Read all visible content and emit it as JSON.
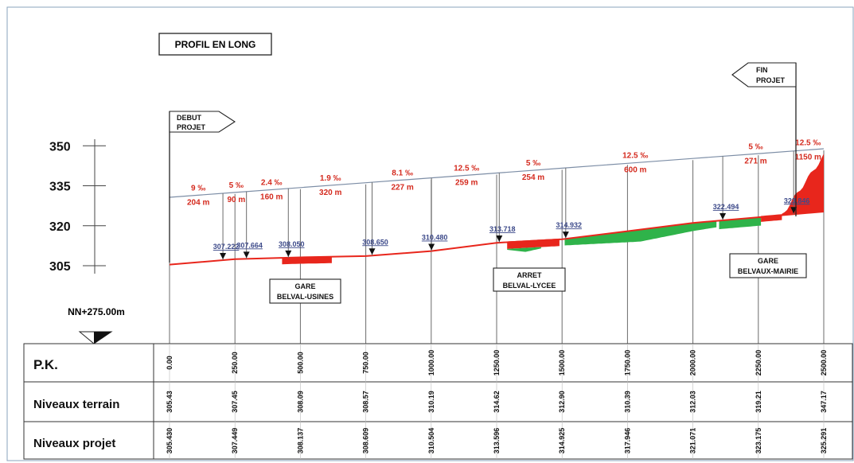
{
  "title": "PROFIL EN LONG",
  "datum_label": "NN+275.00m",
  "markers": {
    "start": [
      "DEBUT",
      "PROJET"
    ],
    "end": [
      "FIN",
      "PROJET"
    ]
  },
  "stations": [
    {
      "label": "GARE",
      "label2": "BELVAL-USINES"
    },
    {
      "label": "ARRET",
      "label2": "BELVAL-LYCEE"
    },
    {
      "label": "GARE",
      "label2": "BELVAUX-MAIRIE"
    }
  ],
  "chart_data": {
    "type": "line",
    "ylim": [
      299,
      357
    ],
    "xlim": [
      0,
      2500
    ],
    "y_ticks": [
      305,
      320,
      335,
      350
    ],
    "x": [
      0,
      250,
      500,
      750,
      1000,
      1250,
      1500,
      1750,
      2000,
      2250,
      2500
    ],
    "x_labels": [
      "0.00",
      "250.00",
      "500.00",
      "750.00",
      "1000.00",
      "1250.00",
      "1500.00",
      "1750.00",
      "2000.00",
      "2250.00",
      "2500.00"
    ],
    "series": [
      {
        "name": "Niveaux terrain",
        "values": [
          305.43,
          307.45,
          308.09,
          308.57,
          310.19,
          314.62,
          312.9,
          310.39,
          312.03,
          319.21,
          347.17
        ],
        "labels": [
          "305.43",
          "307.45",
          "308.09",
          "308.57",
          "310.19",
          "314.62",
          "312.90",
          "310.39",
          "312.03",
          "319.21",
          "347.17"
        ]
      },
      {
        "name": "Niveaux projet",
        "values": [
          305.43,
          307.449,
          308.137,
          308.609,
          310.504,
          313.596,
          314.925,
          317.946,
          321.071,
          323.175,
          325.291
        ],
        "labels": [
          "305.430",
          "307.449",
          "308.137",
          "308.609",
          "310.504",
          "313.596",
          "314.925",
          "317.946",
          "321.071",
          "323.175",
          "325.291"
        ]
      }
    ],
    "grade_segments": [
      {
        "grade": "9 ‰",
        "length": "204 m"
      },
      {
        "grade": "5 ‰",
        "length": "90 m"
      },
      {
        "grade": "2.4 ‰",
        "length": "160 m"
      },
      {
        "grade": "1.9 ‰",
        "length": "320 m"
      },
      {
        "grade": "8.1 ‰",
        "length": "227 m"
      },
      {
        "grade": "12.5 ‰",
        "length": "259 m"
      },
      {
        "grade": "5 ‰",
        "length": "254 m"
      },
      {
        "grade": "12.5 ‰",
        "length": "600 m"
      },
      {
        "grade": "5 ‰",
        "length": "271 m"
      },
      {
        "grade": "12.5 ‰",
        "length": "1150 m"
      }
    ],
    "break_points": [
      {
        "x": 204,
        "label": "307.222"
      },
      {
        "x": 294,
        "label": "307.664"
      },
      {
        "x": 454,
        "label": "308.050"
      },
      {
        "x": 774,
        "label": "308.650"
      },
      {
        "x": 1001,
        "label": "310.480"
      },
      {
        "x": 1260,
        "label": "313.718"
      },
      {
        "x": 1514,
        "label": "314.932"
      },
      {
        "x": 2114,
        "label": "322.494"
      },
      {
        "x": 2385,
        "label": "323.846"
      }
    ]
  },
  "table": {
    "headers": [
      "P.K.",
      "Niveaux terrain",
      "Niveaux projet"
    ]
  }
}
